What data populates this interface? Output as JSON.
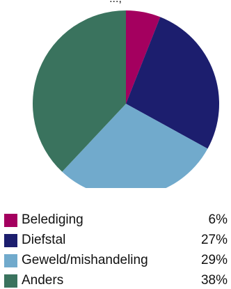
{
  "header_fragment": "...,",
  "chart_data": {
    "type": "pie",
    "categories": [
      "Belediging",
      "Diefstal",
      "Geweld/mishandeling",
      "Anders"
    ],
    "values": [
      6,
      27,
      29,
      38
    ],
    "value_labels": [
      "6%",
      "27%",
      "29%",
      "38%"
    ],
    "colors": [
      "#a4005f",
      "#1c1e6e",
      "#71aacc",
      "#3a735e"
    ],
    "start_angle_deg": 0,
    "direction": "clockwise",
    "legend_placement": "bottom"
  }
}
